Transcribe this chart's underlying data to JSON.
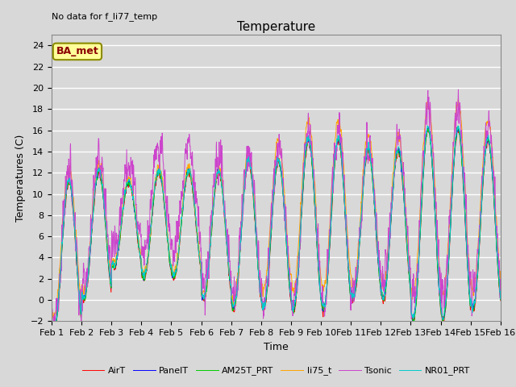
{
  "title": "Temperature",
  "xlabel": "Time",
  "ylabel": "Temperatures (C)",
  "annotation": "No data for f_li77_temp",
  "legend_label": "BA_met",
  "ylim": [
    -2,
    25
  ],
  "xlim": [
    0,
    15
  ],
  "xtick_labels": [
    "Feb 1",
    "Feb 2",
    "Feb 3",
    "Feb 4",
    "Feb 5",
    "Feb 6",
    "Feb 7",
    "Feb 8",
    "Feb 9",
    "Feb 10",
    "Feb 11",
    "Feb 12",
    "Feb 13",
    "Feb 14",
    "Feb 15",
    "Feb 16"
  ],
  "series_colors": {
    "AirT": "#FF0000",
    "PanelT": "#0000FF",
    "AM25T_PRT": "#00CC00",
    "li75_t": "#FFA500",
    "Tsonic": "#CC44CC",
    "NR01_PRT": "#00CCCC"
  },
  "background_color": "#D8D8D8",
  "grid_color": "#FFFFFF",
  "title_fontsize": 11,
  "label_fontsize": 9,
  "tick_fontsize": 8,
  "n_points": 2160,
  "days": 15
}
